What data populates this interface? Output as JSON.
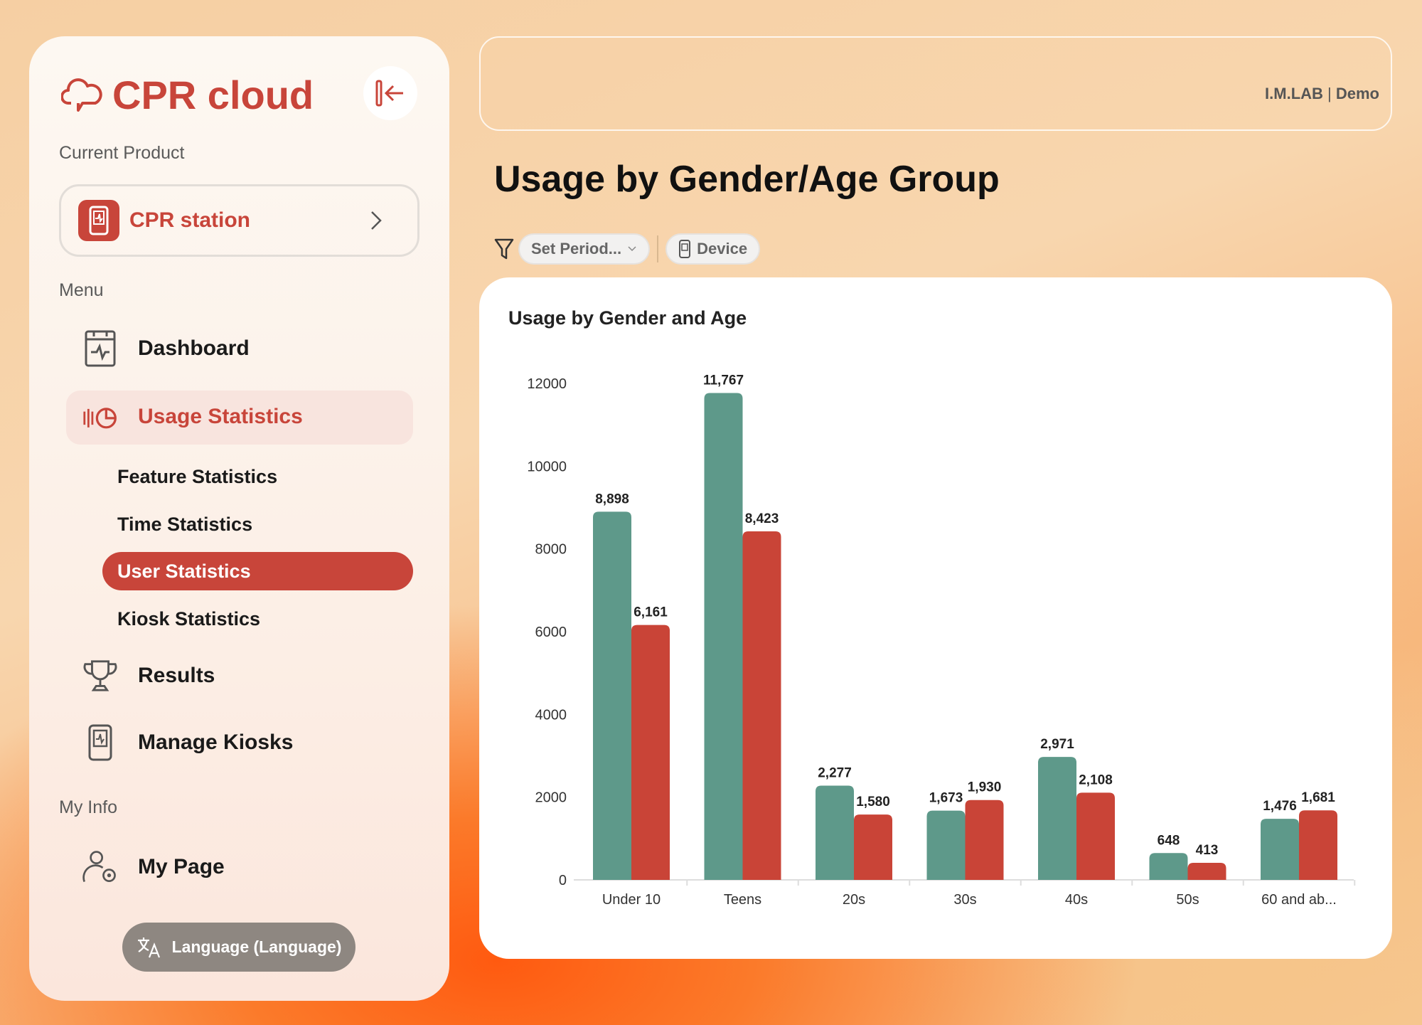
{
  "sidebar": {
    "logo": "CPR cloud",
    "current_product_label": "Current Product",
    "product": "CPR station",
    "menu_label": "Menu",
    "items": [
      {
        "label": "Dashboard"
      },
      {
        "label": "Usage Statistics"
      },
      {
        "label": "Results"
      },
      {
        "label": "Manage Kiosks"
      }
    ],
    "sub_items": [
      {
        "label": "Feature Statistics"
      },
      {
        "label": "Time Statistics"
      },
      {
        "label": "User Statistics"
      },
      {
        "label": "Kiosk Statistics"
      }
    ],
    "my_info_label": "My Info",
    "my_page": "My Page",
    "language": "Language (Language)"
  },
  "header": {
    "org": "I.M.LAB",
    "user": "Demo"
  },
  "page": {
    "title": "Usage by Gender/Age Group",
    "filter_period": "Set Period...",
    "filter_device": "Device"
  },
  "colors": {
    "accent": "#c8453a",
    "series1": "#5e998a",
    "series2": "#c94437"
  },
  "chart_data": {
    "type": "bar",
    "title": "Usage by Gender and Age",
    "categories": [
      "Under 10",
      "Teens",
      "20s",
      "30s",
      "40s",
      "50s",
      "60 and ab..."
    ],
    "series": [
      {
        "name": "series1",
        "values": [
          8898,
          11767,
          2277,
          1673,
          2971,
          648,
          1476
        ],
        "labels": [
          "8,898",
          "11,767",
          "2,277",
          "1,673",
          "2,971",
          "648",
          "1,476"
        ]
      },
      {
        "name": "series2",
        "values": [
          6161,
          8423,
          1580,
          1930,
          2108,
          413,
          1681
        ],
        "labels": [
          "6,161",
          "8,423",
          "1,580",
          "1,930",
          "2,108",
          "413",
          "1,681"
        ]
      }
    ],
    "ylim": [
      0,
      12000
    ],
    "yticks": [
      0,
      2000,
      4000,
      6000,
      8000,
      10000,
      12000
    ],
    "grid": false
  }
}
